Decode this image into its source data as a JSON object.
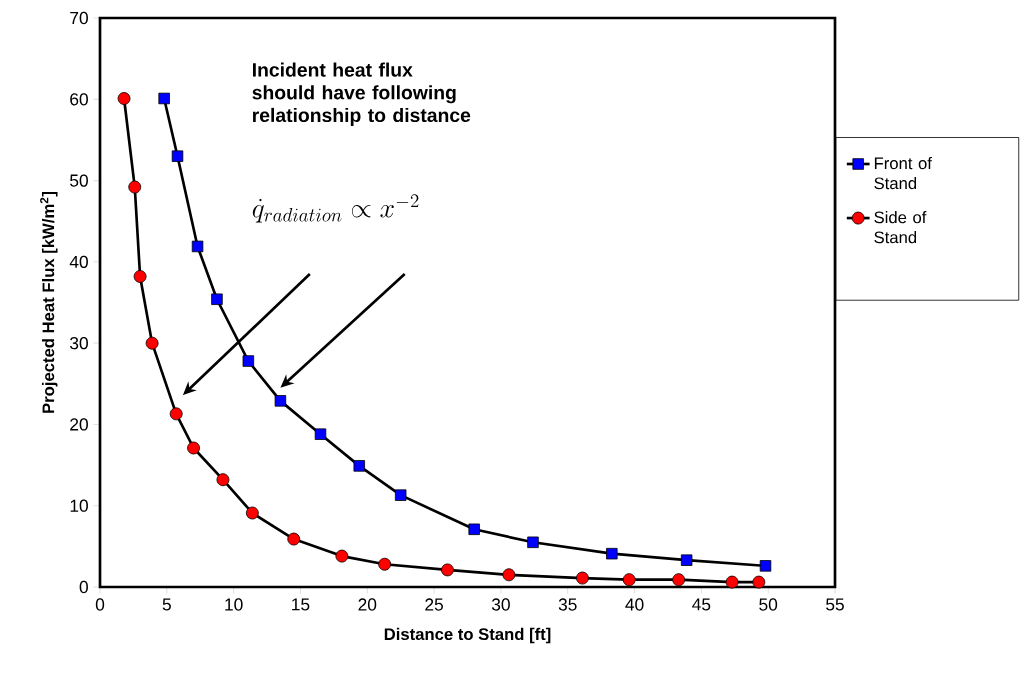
{
  "chart_data": {
    "type": "line",
    "xlabel": "Distance to Stand [ft]",
    "ylabel": "Projected Heat Flux [kW/m$^{2}$]",
    "xlim": [
      0,
      55
    ],
    "ylim": [
      0,
      70
    ],
    "xticks": [
      0,
      5,
      10,
      15,
      20,
      25,
      30,
      35,
      40,
      45,
      50,
      55
    ],
    "yticks": [
      0,
      10,
      20,
      30,
      40,
      50,
      60,
      70
    ],
    "grid": false,
    "legend": "right",
    "line_style": "solid",
    "annotations": [
      "Incident heat flux should have following relationship to distance",
      "\\dot{q}_{radiation} \\propto x^{-2}"
    ],
    "series": [
      {
        "name": "Front of Stand",
        "color": "#0000ff",
        "marker": "square",
        "x": [
          4.8,
          5.8,
          7.3,
          8.75,
          11.1,
          13.5,
          16.5,
          19.4,
          22.5,
          28.0,
          32.4,
          38.3,
          43.9,
          49.8
        ],
        "values": [
          60.1,
          53.0,
          41.9,
          35.4,
          27.8,
          22.9,
          18.8,
          14.9,
          11.3,
          7.1,
          5.5,
          4.1,
          3.3,
          2.6
        ]
      },
      {
        "name": "Side of Stand",
        "color": "#ff0000",
        "marker": "circle",
        "x": [
          1.8,
          2.6,
          3.0,
          3.9,
          5.7,
          7.0,
          9.2,
          11.4,
          14.5,
          18.1,
          21.3,
          26.0,
          30.6,
          36.1,
          39.6,
          43.3,
          47.3,
          49.3
        ],
        "values": [
          60.1,
          49.2,
          38.2,
          30.0,
          21.3,
          17.1,
          13.2,
          9.1,
          5.9,
          3.8,
          2.8,
          2.1,
          1.5,
          1.1,
          0.9,
          0.9,
          0.6,
          0.6
        ]
      }
    ]
  }
}
